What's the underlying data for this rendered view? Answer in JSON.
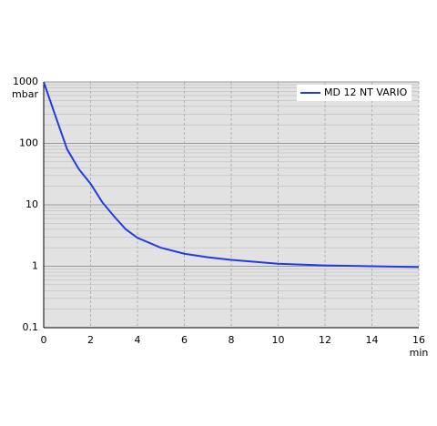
{
  "chart_data": {
    "type": "line",
    "ylabel": "mbar",
    "xlabel": "min",
    "x": [
      0,
      0.5,
      1,
      1.5,
      2,
      2.5,
      3,
      3.5,
      4,
      5,
      6,
      7,
      8,
      10,
      12,
      14,
      16
    ],
    "series": [
      {
        "name": "MD 12 NT VARIO",
        "color": "#1f3de0",
        "values": [
          1000,
          280,
          80,
          38,
          22,
          11,
          6.5,
          4,
          2.9,
          2.0,
          1.6,
          1.4,
          1.27,
          1.1,
          1.03,
          1.0,
          0.97
        ]
      }
    ],
    "xlim": [
      0,
      16
    ],
    "xticks": [
      0,
      2,
      4,
      6,
      8,
      10,
      12,
      14,
      16
    ],
    "ylim": [
      0.1,
      1000
    ],
    "yticks": [
      0.1,
      1,
      10,
      100,
      1000
    ],
    "ylog": true,
    "grid": true,
    "legend": "upper right"
  }
}
